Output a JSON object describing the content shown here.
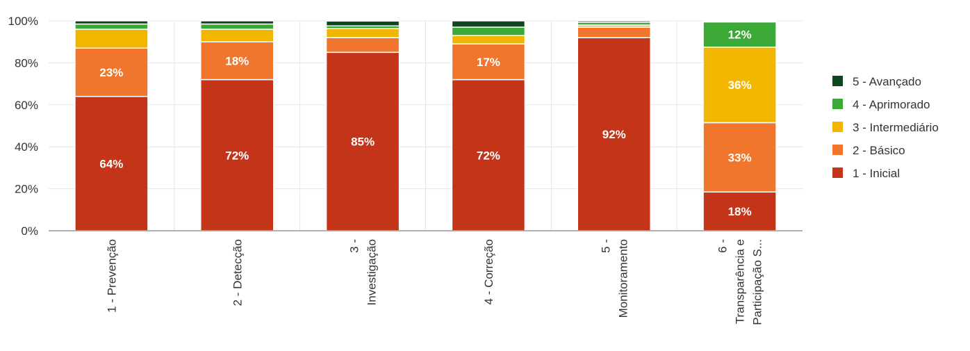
{
  "chart_data": {
    "type": "bar",
    "stacked": true,
    "title": "",
    "xlabel": "",
    "ylabel": "",
    "ylim": [
      0,
      100
    ],
    "y_ticks": [
      "0%",
      "20%",
      "40%",
      "60%",
      "80%",
      "100%"
    ],
    "grid": true,
    "legend_position": "right",
    "categories": [
      [
        "1 - Prevenção"
      ],
      [
        "2 - Detecção"
      ],
      [
        "3 -",
        "Investigação"
      ],
      [
        "4 - Correção"
      ],
      [
        "5 -",
        "Monitoramento"
      ],
      [
        "6 -",
        "Transparência e",
        "Participação S..."
      ]
    ],
    "series": [
      {
        "name": "1 - Inicial",
        "color": "#C43419",
        "values": [
          64,
          72,
          85,
          72,
          92,
          18.5
        ]
      },
      {
        "name": "2 - Básico",
        "color": "#F0752D",
        "values": [
          23,
          18,
          7,
          17,
          5,
          33
        ]
      },
      {
        "name": "3 - Intermediário",
        "color": "#F2B500",
        "values": [
          9,
          6,
          4.3,
          4,
          1,
          36
        ]
      },
      {
        "name": "4 - Aprimorado",
        "color": "#3AA935",
        "values": [
          2.5,
          2.5,
          1.3,
          4,
          1.3,
          12
        ]
      },
      {
        "name": "5 - Avançado",
        "color": "#0D4720",
        "values": [
          1.5,
          1.5,
          2.3,
          3,
          0.7,
          0.5
        ]
      }
    ],
    "data_labels": [
      [
        "64%",
        "72%",
        "85%",
        "72%",
        "92%",
        "18%"
      ],
      [
        "23%",
        "18%",
        "",
        "17%",
        "",
        "33%"
      ],
      [
        "",
        "",
        "",
        "",
        "",
        "36%"
      ],
      [
        "",
        "",
        "",
        "",
        "",
        "12%"
      ],
      [
        "",
        "",
        "",
        "",
        "",
        ""
      ]
    ]
  }
}
